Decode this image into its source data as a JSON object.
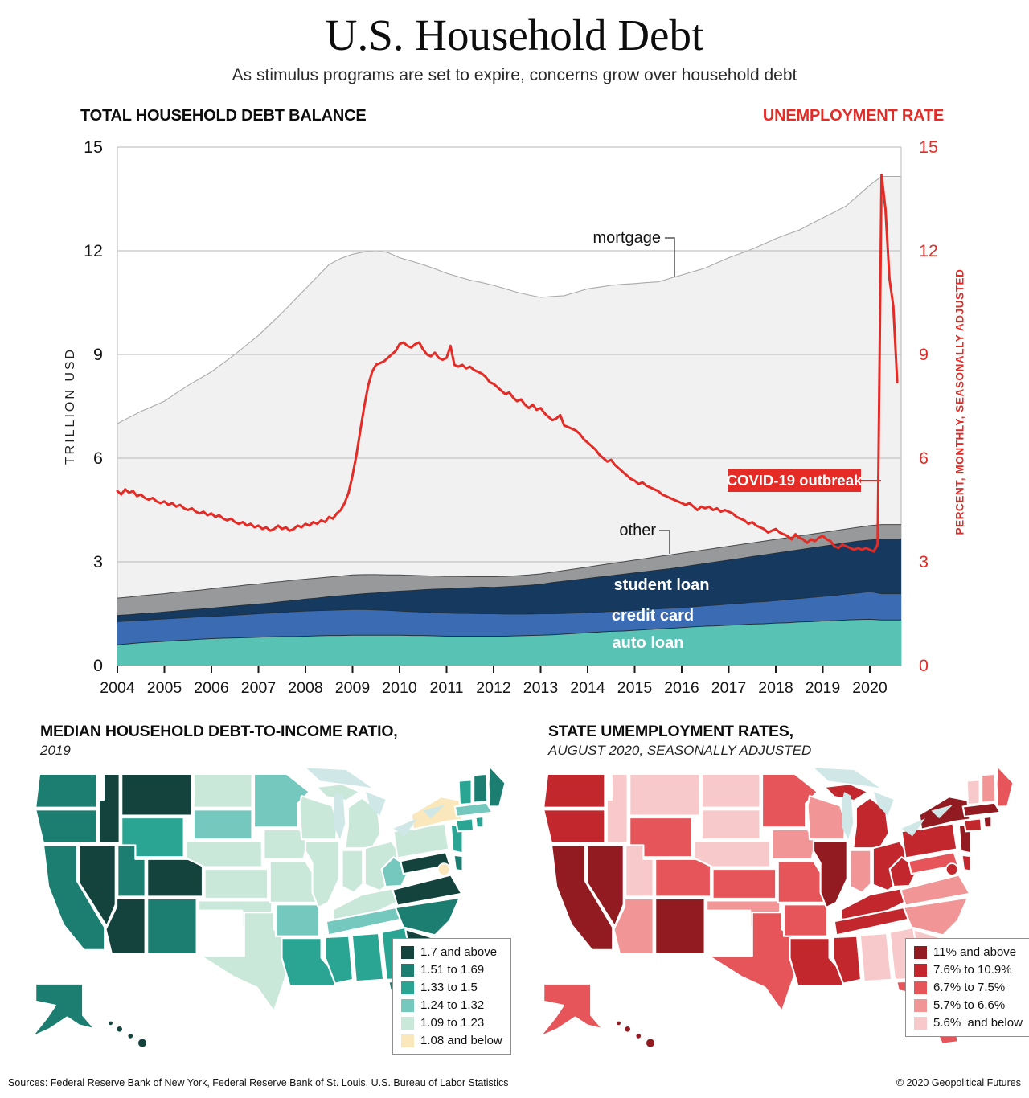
{
  "page": {
    "title": "U.S. Household Debt",
    "subtitle": "As stimulus programs are set to expire, concerns grow over household debt",
    "footer_sources": "Sources: Federal Reserve Bank of New York, Federal Reserve Bank of St. Louis, U.S. Bureau of Labor Statistics",
    "footer_copyright": "© 2020 Geopolitical Futures"
  },
  "colors": {
    "accent_red": "#e42b26",
    "grid": "#c4c4c4",
    "zero_line": "#9a9a9a",
    "mortgage_fill": "#f1f1f2",
    "mortgage_edge": "#ababab",
    "other_fill": "#98999b",
    "other_edge": "#4a4a4a",
    "student_fill": "#163a5f",
    "credit_fill": "#3b6cb3",
    "auto_fill": "#58c3b5",
    "band_edge": "#22303c",
    "lake_fill": "#cfe8e7"
  },
  "chart": {
    "left_header": "TOTAL HOUSEHOLD DEBT BALANCE",
    "right_header": "UNEMPLOYMENT RATE",
    "left_axis_title": "TRILLION USD",
    "right_axis_title": "PERCENT, MONTHLY, SEASONALLY ADJUSTED",
    "labels": {
      "mortgage": "mortgage",
      "other": "other",
      "student": "student loan",
      "credit": "credit card",
      "auto": "auto loan",
      "covid": "COVID-19 outbreak"
    }
  },
  "chart_data": {
    "type": "area",
    "title": "TOTAL HOUSEHOLD DEBT BALANCE (stacked) with UNEMPLOYMENT RATE line",
    "ylabel_left": "TRILLION USD",
    "ylabel_right": "PERCENT, MONTHLY, SEASONALLY ADJUSTED",
    "ylim": [
      0,
      15
    ],
    "yticks": [
      15,
      12,
      9,
      6,
      3,
      0
    ],
    "x_years": [
      2004,
      2005,
      2006,
      2007,
      2008,
      2009,
      2010,
      2011,
      2012,
      2013,
      2014,
      2015,
      2016,
      2017,
      2018,
      2019,
      2020
    ],
    "debt_quarterly_trillions": {
      "start": "2004Q1",
      "note": "stacked bottom-to-top: auto loan, credit card, student loan, other, mortgage",
      "series": [
        {
          "name": "auto loan",
          "values": [
            0.6,
            0.63,
            0.66,
            0.68,
            0.7,
            0.72,
            0.74,
            0.76,
            0.78,
            0.79,
            0.8,
            0.81,
            0.82,
            0.83,
            0.84,
            0.84,
            0.85,
            0.86,
            0.87,
            0.87,
            0.88,
            0.88,
            0.88,
            0.88,
            0.88,
            0.87,
            0.87,
            0.86,
            0.85,
            0.85,
            0.85,
            0.85,
            0.85,
            0.85,
            0.86,
            0.87,
            0.88,
            0.89,
            0.91,
            0.93,
            0.95,
            0.97,
            0.99,
            1.0,
            1.02,
            1.04,
            1.06,
            1.08,
            1.1,
            1.12,
            1.14,
            1.15,
            1.17,
            1.18,
            1.2,
            1.21,
            1.23,
            1.24,
            1.26,
            1.27,
            1.29,
            1.3,
            1.32,
            1.33,
            1.34,
            1.32
          ]
        },
        {
          "name": "credit card",
          "values": [
            0.67,
            0.66,
            0.65,
            0.65,
            0.65,
            0.65,
            0.65,
            0.65,
            0.64,
            0.65,
            0.66,
            0.67,
            0.68,
            0.69,
            0.7,
            0.72,
            0.73,
            0.73,
            0.73,
            0.74,
            0.74,
            0.74,
            0.73,
            0.72,
            0.7,
            0.69,
            0.68,
            0.67,
            0.67,
            0.66,
            0.66,
            0.65,
            0.65,
            0.64,
            0.63,
            0.62,
            0.62,
            0.61,
            0.6,
            0.59,
            0.59,
            0.58,
            0.58,
            0.58,
            0.58,
            0.58,
            0.58,
            0.58,
            0.58,
            0.58,
            0.59,
            0.6,
            0.61,
            0.62,
            0.63,
            0.64,
            0.65,
            0.67,
            0.68,
            0.7,
            0.71,
            0.73,
            0.75,
            0.77,
            0.8,
            0.76
          ]
        },
        {
          "name": "student loan",
          "values": [
            0.18,
            0.18,
            0.19,
            0.19,
            0.2,
            0.21,
            0.22,
            0.22,
            0.24,
            0.25,
            0.26,
            0.27,
            0.28,
            0.29,
            0.31,
            0.32,
            0.34,
            0.36,
            0.39,
            0.41,
            0.43,
            0.46,
            0.49,
            0.53,
            0.57,
            0.61,
            0.64,
            0.68,
            0.7,
            0.73,
            0.74,
            0.77,
            0.76,
            0.79,
            0.81,
            0.83,
            0.85,
            0.9,
            0.93,
            0.96,
            0.98,
            1.01,
            1.03,
            1.06,
            1.08,
            1.1,
            1.12,
            1.14,
            1.17,
            1.2,
            1.22,
            1.25,
            1.27,
            1.3,
            1.32,
            1.35,
            1.37,
            1.39,
            1.41,
            1.43,
            1.45,
            1.47,
            1.48,
            1.5,
            1.49,
            1.58
          ]
        },
        {
          "name": "other",
          "values": [
            0.5,
            0.51,
            0.52,
            0.53,
            0.53,
            0.54,
            0.54,
            0.55,
            0.56,
            0.57,
            0.57,
            0.58,
            0.58,
            0.59,
            0.58,
            0.59,
            0.58,
            0.58,
            0.57,
            0.57,
            0.57,
            0.55,
            0.53,
            0.49,
            0.47,
            0.44,
            0.41,
            0.38,
            0.36,
            0.34,
            0.32,
            0.3,
            0.31,
            0.3,
            0.3,
            0.3,
            0.3,
            0.3,
            0.31,
            0.32,
            0.33,
            0.34,
            0.35,
            0.36,
            0.37,
            0.38,
            0.39,
            0.4,
            0.4,
            0.4,
            0.4,
            0.4,
            0.4,
            0.4,
            0.4,
            0.4,
            0.4,
            0.4,
            0.4,
            0.4,
            0.4,
            0.4,
            0.4,
            0.4,
            0.42,
            0.42
          ]
        },
        {
          "name": "mortgage",
          "values": [
            5.05,
            5.2,
            5.33,
            5.45,
            5.57,
            5.76,
            5.95,
            6.12,
            6.28,
            6.49,
            6.71,
            6.95,
            7.19,
            7.48,
            7.77,
            8.08,
            8.4,
            8.72,
            9.04,
            9.19,
            9.28,
            9.34,
            9.37,
            9.33,
            9.18,
            9.09,
            9.0,
            8.89,
            8.77,
            8.67,
            8.58,
            8.51,
            8.43,
            8.32,
            8.2,
            8.1,
            8.0,
            7.98,
            7.95,
            8.0,
            8.05,
            8.05,
            8.05,
            8.03,
            8.0,
            7.98,
            7.95,
            8.0,
            8.05,
            8.1,
            8.15,
            8.25,
            8.35,
            8.42,
            8.5,
            8.6,
            8.7,
            8.78,
            8.85,
            8.98,
            9.1,
            9.22,
            9.35,
            9.6,
            9.85,
            10.07
          ]
        }
      ]
    },
    "unemployment_monthly_percent": {
      "start": "2004-01",
      "end": "2020-08",
      "values": [
        5.05,
        4.95,
        5.1,
        5.0,
        5.05,
        4.9,
        4.95,
        4.85,
        4.8,
        4.85,
        4.75,
        4.7,
        4.75,
        4.65,
        4.7,
        4.6,
        4.65,
        4.55,
        4.5,
        4.55,
        4.45,
        4.4,
        4.45,
        4.35,
        4.4,
        4.3,
        4.35,
        4.25,
        4.2,
        4.25,
        4.15,
        4.1,
        4.15,
        4.05,
        4.1,
        4.0,
        4.05,
        3.95,
        4.0,
        3.9,
        3.95,
        4.05,
        3.95,
        4.0,
        3.9,
        3.95,
        4.05,
        4.0,
        4.1,
        4.05,
        4.15,
        4.1,
        4.2,
        4.15,
        4.3,
        4.25,
        4.4,
        4.5,
        4.7,
        5.0,
        5.5,
        6.1,
        6.8,
        7.5,
        8.1,
        8.5,
        8.7,
        8.75,
        8.8,
        8.9,
        9.0,
        9.1,
        9.3,
        9.35,
        9.25,
        9.2,
        9.3,
        9.35,
        9.15,
        9.0,
        8.95,
        9.05,
        8.9,
        8.85,
        8.9,
        9.25,
        8.7,
        8.65,
        8.7,
        8.6,
        8.65,
        8.55,
        8.5,
        8.45,
        8.35,
        8.2,
        8.15,
        8.05,
        7.95,
        7.85,
        7.9,
        7.75,
        7.65,
        7.7,
        7.55,
        7.45,
        7.55,
        7.4,
        7.45,
        7.3,
        7.2,
        7.1,
        7.15,
        7.25,
        6.95,
        6.9,
        6.85,
        6.8,
        6.7,
        6.55,
        6.45,
        6.35,
        6.25,
        6.1,
        6.0,
        5.9,
        5.95,
        5.8,
        5.7,
        5.6,
        5.5,
        5.4,
        5.35,
        5.25,
        5.3,
        5.2,
        5.15,
        5.1,
        5.05,
        4.95,
        4.9,
        4.85,
        4.8,
        4.75,
        4.7,
        4.65,
        4.7,
        4.6,
        4.5,
        4.6,
        4.55,
        4.6,
        4.5,
        4.55,
        4.45,
        4.5,
        4.45,
        4.4,
        4.3,
        4.25,
        4.2,
        4.1,
        4.15,
        4.05,
        4.0,
        3.95,
        3.85,
        3.9,
        3.95,
        3.85,
        3.8,
        3.75,
        3.65,
        3.8,
        3.7,
        3.65,
        3.55,
        3.65,
        3.6,
        3.7,
        3.75,
        3.65,
        3.6,
        3.45,
        3.4,
        3.5,
        3.45,
        3.4,
        3.35,
        3.4,
        3.35,
        3.4,
        3.35,
        3.3,
        3.5,
        14.2,
        13.2,
        11.2,
        10.4,
        8.2
      ]
    },
    "annotations": [
      "mortgage",
      "other",
      "COVID-19 outbreak",
      "student loan",
      "credit card",
      "auto loan"
    ]
  },
  "maps": {
    "debt": {
      "title": "MEDIAN HOUSEHOLD DEBT-TO-INCOME RATIO,",
      "subtitle": "2019",
      "legend": [
        {
          "label": "1.7 and above",
          "color": "#14433d"
        },
        {
          "label": "1.51 to 1.69",
          "color": "#1b7e70"
        },
        {
          "label": "1.33 to 1.5",
          "color": "#2aa593"
        },
        {
          "label": "1.24 to 1.32",
          "color": "#74c8bd"
        },
        {
          "label": "1.09 to 1.23",
          "color": "#c9e8da"
        },
        {
          "label": "1.08 and below",
          "color": "#fae8bc"
        }
      ],
      "states": {
        "WA": 1,
        "OR": 1,
        "CA": 1,
        "ID": 0,
        "NV": 0,
        "MT": 0,
        "WY": 2,
        "UT": 1,
        "CO": 0,
        "AZ": 0,
        "NM": 1,
        "ND": 4,
        "SD": 3,
        "NE": 4,
        "KS": 4,
        "OK": 4,
        "TX": 4,
        "MN": 3,
        "IA": 4,
        "MO": 4,
        "AR": 3,
        "LA": 2,
        "WI": 4,
        "IL": 4,
        "MI": 4,
        "IN": 4,
        "OH": 4,
        "KY": 4,
        "TN": 3,
        "MS": 2,
        "AL": 2,
        "GA": 2,
        "FL": 1,
        "SC": 0,
        "NC": 1,
        "VA": 0,
        "WV": 3,
        "PA": 4,
        "NY": 5,
        "NJ": 2,
        "MD": 0,
        "DE": 1,
        "CT": 2,
        "RI": 2,
        "MA": 3,
        "VT": 2,
        "NH": 1,
        "ME": 1,
        "AK": 1,
        "HI": 0,
        "DC": 5
      }
    },
    "unemployment": {
      "title": "STATE UMEMPLOYMENT RATES,",
      "subtitle": "AUGUST 2020, SEASONALLY ADJUSTED",
      "legend": [
        {
          "label": "11% and above",
          "color": "#911b20"
        },
        {
          "label": "7.6% to 10.9%",
          "color": "#c1272d"
        },
        {
          "label": "6.7% to 7.5%",
          "color": "#e5555a"
        },
        {
          "label": "5.7% to 6.6%",
          "color": "#f19597"
        },
        {
          "label": "5.6%  and below",
          "color": "#f8c9cb"
        }
      ],
      "states": {
        "WA": 1,
        "OR": 1,
        "CA": 0,
        "NV": 0,
        "ID": 4,
        "MT": 4,
        "WY": 2,
        "UT": 4,
        "CO": 2,
        "AZ": 3,
        "NM": 0,
        "ND": 4,
        "SD": 4,
        "NE": 4,
        "KS": 2,
        "OK": 3,
        "TX": 2,
        "MN": 2,
        "IA": 3,
        "MO": 2,
        "AR": 2,
        "LA": 1,
        "WI": 3,
        "IL": 0,
        "MI": 1,
        "IN": 3,
        "OH": 1,
        "KY": 1,
        "TN": 1,
        "MS": 1,
        "AL": 4,
        "GA": 4,
        "FL": 2,
        "SC": 4,
        "NC": 3,
        "VA": 3,
        "WV": 1,
        "PA": 1,
        "NY": 0,
        "NJ": 0,
        "MD": 2,
        "DE": 1,
        "CT": 1,
        "RI": 0,
        "MA": 0,
        "VT": 4,
        "NH": 3,
        "ME": 2,
        "AK": 2,
        "HI": 0,
        "DC": 1
      }
    }
  }
}
